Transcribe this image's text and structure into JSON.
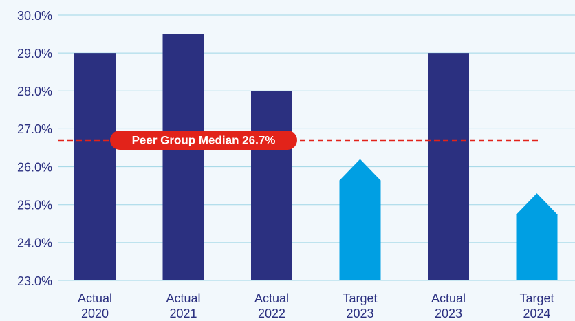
{
  "chart_data": {
    "type": "bar",
    "categories": [
      [
        "Actual",
        "2020"
      ],
      [
        "Actual",
        "2021"
      ],
      [
        "Actual",
        "2022"
      ],
      [
        "Target",
        "2023"
      ],
      [
        "Actual",
        "2023"
      ],
      [
        "Target",
        "2024"
      ]
    ],
    "values": [
      29.0,
      29.5,
      28.0,
      26.2,
      29.0,
      25.3
    ],
    "colors": [
      "#2b3080",
      "#2b3080",
      "#2b3080",
      "#009fe3",
      "#2b3080",
      "#009fe3"
    ],
    "shapes": [
      "bar",
      "bar",
      "bar",
      "arrow",
      "bar",
      "arrow"
    ],
    "ylim": [
      23,
      30
    ],
    "yticks": [
      {
        "value": 23,
        "label": "23.0%"
      },
      {
        "value": 24,
        "label": "24.0%"
      },
      {
        "value": 25,
        "label": "25.0%"
      },
      {
        "value": 26,
        "label": "26.0%"
      },
      {
        "value": 27,
        "label": "27.0%"
      },
      {
        "value": 28,
        "label": "28.0%"
      },
      {
        "value": 29,
        "label": "29.0%"
      },
      {
        "value": 30,
        "label": "30.0%"
      }
    ],
    "grid": true,
    "reference_line": {
      "value": 26.7,
      "label": "Peer Group Median 26.7%",
      "color": "#e2231a"
    }
  }
}
